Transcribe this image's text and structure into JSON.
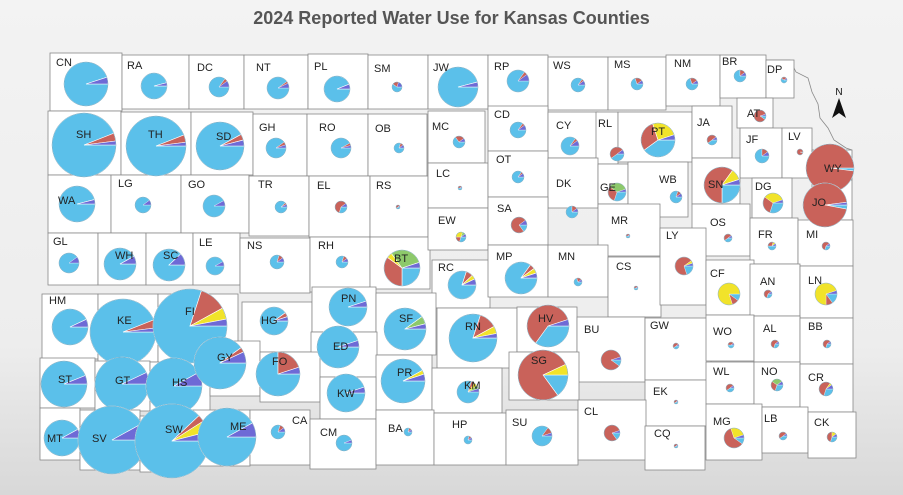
{
  "title": "2024 Reported Water Use for Kansas Counties",
  "north_arrow": {
    "label": "N",
    "icon": "north-arrow-icon"
  },
  "colors": {
    "groundwater_blue": "#5bc0ea",
    "red": "#c9625a",
    "yellow": "#f1e32a",
    "green": "#8dc96b",
    "purple": "#6e6ad6",
    "county_fill": "#ffffff",
    "county_border": "#888888"
  },
  "counties": [
    {
      "code": "CN",
      "uses": [
        95,
        0,
        0,
        0,
        5
      ]
    },
    {
      "code": "RA",
      "uses": [
        96,
        0,
        0,
        0,
        4
      ]
    },
    {
      "code": "DC",
      "uses": [
        85,
        5,
        0,
        0,
        10
      ]
    },
    {
      "code": "NT",
      "uses": [
        90,
        3,
        0,
        0,
        7
      ]
    },
    {
      "code": "PL",
      "uses": [
        94,
        0,
        0,
        0,
        6
      ]
    },
    {
      "code": "SM",
      "uses": [
        60,
        20,
        0,
        0,
        20
      ]
    },
    {
      "code": "JW",
      "uses": [
        96,
        0,
        0,
        0,
        4
      ]
    },
    {
      "code": "RP",
      "uses": [
        85,
        5,
        0,
        0,
        10
      ]
    },
    {
      "code": "WS",
      "uses": [
        85,
        5,
        0,
        0,
        10
      ]
    },
    {
      "code": "MS",
      "uses": [
        70,
        20,
        0,
        0,
        10
      ]
    },
    {
      "code": "NM",
      "uses": [
        70,
        20,
        0,
        0,
        10
      ]
    },
    {
      "code": "BR",
      "uses": [
        75,
        15,
        0,
        0,
        10
      ]
    },
    {
      "code": "DP",
      "uses": [
        60,
        30,
        0,
        0,
        10
      ]
    },
    {
      "code": "SH",
      "uses": [
        94,
        4,
        0,
        0,
        2
      ]
    },
    {
      "code": "TH",
      "uses": [
        94,
        4,
        0,
        0,
        2
      ]
    },
    {
      "code": "SD",
      "uses": [
        92,
        4,
        0,
        0,
        4
      ]
    },
    {
      "code": "GH",
      "uses": [
        90,
        5,
        0,
        0,
        5
      ]
    },
    {
      "code": "RO",
      "uses": [
        92,
        4,
        0,
        0,
        4
      ]
    },
    {
      "code": "OB",
      "uses": [
        80,
        10,
        0,
        0,
        10
      ]
    },
    {
      "code": "MC",
      "uses": [
        65,
        25,
        0,
        0,
        10
      ]
    },
    {
      "code": "CD",
      "uses": [
        85,
        5,
        0,
        0,
        10
      ]
    },
    {
      "code": "CY",
      "uses": [
        85,
        5,
        0,
        0,
        10
      ]
    },
    {
      "code": "RL",
      "uses": [
        40,
        50,
        0,
        0,
        10
      ]
    },
    {
      "code": "PT",
      "uses": [
        40,
        30,
        25,
        0,
        5
      ]
    },
    {
      "code": "JA",
      "uses": [
        40,
        50,
        0,
        0,
        10
      ]
    },
    {
      "code": "AT",
      "uses": [
        10,
        85,
        0,
        0,
        5
      ]
    },
    {
      "code": "JF",
      "uses": [
        75,
        15,
        0,
        0,
        10
      ]
    },
    {
      "code": "LV",
      "uses": [
        5,
        95,
        0,
        0,
        0
      ]
    },
    {
      "code": "WY",
      "uses": [
        2,
        98,
        0,
        0,
        0
      ]
    },
    {
      "code": "JO",
      "uses": [
        3,
        95,
        0,
        0,
        2
      ]
    },
    {
      "code": "WA",
      "uses": [
        96,
        0,
        0,
        0,
        4
      ]
    },
    {
      "code": "LG",
      "uses": [
        90,
        0,
        0,
        0,
        10
      ]
    },
    {
      "code": "GO",
      "uses": [
        92,
        0,
        0,
        0,
        8
      ]
    },
    {
      "code": "TR",
      "uses": [
        88,
        5,
        0,
        0,
        7
      ]
    },
    {
      "code": "EL",
      "uses": [
        30,
        60,
        0,
        0,
        10
      ]
    },
    {
      "code": "RS",
      "uses": [
        40,
        50,
        0,
        0,
        10
      ]
    },
    {
      "code": "LC",
      "uses": [
        50,
        40,
        0,
        0,
        10
      ]
    },
    {
      "code": "OT",
      "uses": [
        85,
        5,
        0,
        0,
        10
      ]
    },
    {
      "code": "DK",
      "uses": [
        75,
        15,
        0,
        0,
        10
      ]
    },
    {
      "code": "GE",
      "uses": [
        30,
        30,
        0,
        35,
        5
      ]
    },
    {
      "code": "WB",
      "uses": [
        80,
        10,
        0,
        0,
        10
      ]
    },
    {
      "code": "SN",
      "uses": [
        25,
        60,
        10,
        0,
        5
      ]
    },
    {
      "code": "DG",
      "uses": [
        30,
        30,
        35,
        0,
        5
      ]
    },
    {
      "code": "GL",
      "uses": [
        90,
        0,
        0,
        0,
        10
      ]
    },
    {
      "code": "WH",
      "uses": [
        92,
        0,
        0,
        0,
        8
      ]
    },
    {
      "code": "SC",
      "uses": [
        88,
        0,
        0,
        0,
        12
      ]
    },
    {
      "code": "LE",
      "uses": [
        92,
        0,
        0,
        0,
        8
      ]
    },
    {
      "code": "NS",
      "uses": [
        80,
        10,
        0,
        0,
        10
      ]
    },
    {
      "code": "RH",
      "uses": [
        80,
        10,
        0,
        0,
        10
      ]
    },
    {
      "code": "BT",
      "uses": [
        25,
        35,
        5,
        30,
        5
      ]
    },
    {
      "code": "EW",
      "uses": [
        30,
        20,
        30,
        10,
        10
      ]
    },
    {
      "code": "SA",
      "uses": [
        15,
        75,
        0,
        0,
        10
      ]
    },
    {
      "code": "MR",
      "uses": [
        50,
        40,
        0,
        0,
        10
      ]
    },
    {
      "code": "OS",
      "uses": [
        40,
        50,
        0,
        0,
        10
      ]
    },
    {
      "code": "FR",
      "uses": [
        50,
        30,
        10,
        0,
        10
      ]
    },
    {
      "code": "MI",
      "uses": [
        30,
        60,
        0,
        0,
        10
      ]
    },
    {
      "code": "RC",
      "uses": [
        80,
        8,
        5,
        0,
        7
      ]
    },
    {
      "code": "MP",
      "uses": [
        85,
        5,
        5,
        0,
        5
      ]
    },
    {
      "code": "MN",
      "uses": [
        70,
        20,
        0,
        0,
        10
      ]
    },
    {
      "code": "CS",
      "uses": [
        50,
        40,
        0,
        0,
        10
      ]
    },
    {
      "code": "LY",
      "uses": [
        20,
        70,
        5,
        0,
        5
      ]
    },
    {
      "code": "CF",
      "uses": [
        10,
        10,
        80,
        0,
        0
      ]
    },
    {
      "code": "AN",
      "uses": [
        30,
        60,
        0,
        0,
        10
      ]
    },
    {
      "code": "LN",
      "uses": [
        15,
        10,
        70,
        0,
        5
      ]
    },
    {
      "code": "HM",
      "uses": [
        93,
        0,
        0,
        0,
        7
      ]
    },
    {
      "code": "KE",
      "uses": [
        94,
        4,
        0,
        0,
        2
      ]
    },
    {
      "code": "FI",
      "uses": [
        80,
        12,
        5,
        0,
        3
      ]
    },
    {
      "code": "HG",
      "uses": [
        90,
        5,
        0,
        0,
        5
      ]
    },
    {
      "code": "PN",
      "uses": [
        95,
        0,
        0,
        0,
        5
      ]
    },
    {
      "code": "SF",
      "uses": [
        90,
        0,
        0,
        6,
        4
      ]
    },
    {
      "code": "RN",
      "uses": [
        80,
        12,
        5,
        0,
        3
      ]
    },
    {
      "code": "HV",
      "uses": [
        35,
        60,
        0,
        0,
        5
      ]
    },
    {
      "code": "BU",
      "uses": [
        10,
        85,
        0,
        0,
        5
      ]
    },
    {
      "code": "GW",
      "uses": [
        40,
        50,
        0,
        0,
        10
      ]
    },
    {
      "code": "WO",
      "uses": [
        50,
        40,
        0,
        0,
        10
      ]
    },
    {
      "code": "AL",
      "uses": [
        30,
        60,
        0,
        0,
        10
      ]
    },
    {
      "code": "BB",
      "uses": [
        30,
        60,
        0,
        0,
        10
      ]
    },
    {
      "code": "ED",
      "uses": [
        95,
        0,
        0,
        0,
        5
      ]
    },
    {
      "code": "ST",
      "uses": [
        94,
        0,
        0,
        0,
        6
      ]
    },
    {
      "code": "GT",
      "uses": [
        93,
        0,
        0,
        0,
        7
      ]
    },
    {
      "code": "HS",
      "uses": [
        92,
        0,
        0,
        0,
        8
      ]
    },
    {
      "code": "GY",
      "uses": [
        90,
        3,
        0,
        0,
        7
      ]
    },
    {
      "code": "FO",
      "uses": [
        75,
        20,
        0,
        0,
        5
      ]
    },
    {
      "code": "PR",
      "uses": [
        92,
        0,
        3,
        0,
        5
      ]
    },
    {
      "code": "KM",
      "uses": [
        80,
        5,
        5,
        5,
        5
      ]
    },
    {
      "code": "SG",
      "uses": [
        15,
        78,
        7,
        0,
        0
      ]
    },
    {
      "code": "EK",
      "uses": [
        40,
        50,
        0,
        0,
        10
      ]
    },
    {
      "code": "WL",
      "uses": [
        40,
        50,
        0,
        0,
        10
      ]
    },
    {
      "code": "NO",
      "uses": [
        30,
        30,
        0,
        30,
        10
      ]
    },
    {
      "code": "CR",
      "uses": [
        30,
        55,
        5,
        0,
        10
      ]
    },
    {
      "code": "KW",
      "uses": [
        95,
        0,
        0,
        0,
        5
      ]
    },
    {
      "code": "MT",
      "uses": [
        92,
        0,
        0,
        0,
        8
      ]
    },
    {
      "code": "SV",
      "uses": [
        92,
        0,
        0,
        0,
        8
      ]
    },
    {
      "code": "SW",
      "uses": [
        88,
        3,
        5,
        0,
        4
      ]
    },
    {
      "code": "ME",
      "uses": [
        92,
        0,
        0,
        0,
        8
      ]
    },
    {
      "code": "CA",
      "uses": [
        80,
        10,
        0,
        0,
        10
      ]
    },
    {
      "code": "CM",
      "uses": [
        94,
        0,
        0,
        0,
        6
      ]
    },
    {
      "code": "BA",
      "uses": [
        80,
        10,
        0,
        0,
        10
      ]
    },
    {
      "code": "HP",
      "uses": [
        80,
        10,
        0,
        0,
        10
      ]
    },
    {
      "code": "SU",
      "uses": [
        85,
        10,
        0,
        0,
        5
      ]
    },
    {
      "code": "CL",
      "uses": [
        15,
        80,
        0,
        0,
        5
      ]
    },
    {
      "code": "CQ",
      "uses": [
        40,
        50,
        0,
        0,
        10
      ]
    },
    {
      "code": "MG",
      "uses": [
        10,
        60,
        25,
        0,
        5
      ]
    },
    {
      "code": "LB",
      "uses": [
        40,
        50,
        0,
        0,
        10
      ]
    },
    {
      "code": "CK",
      "uses": [
        30,
        45,
        15,
        0,
        10
      ]
    }
  ]
}
